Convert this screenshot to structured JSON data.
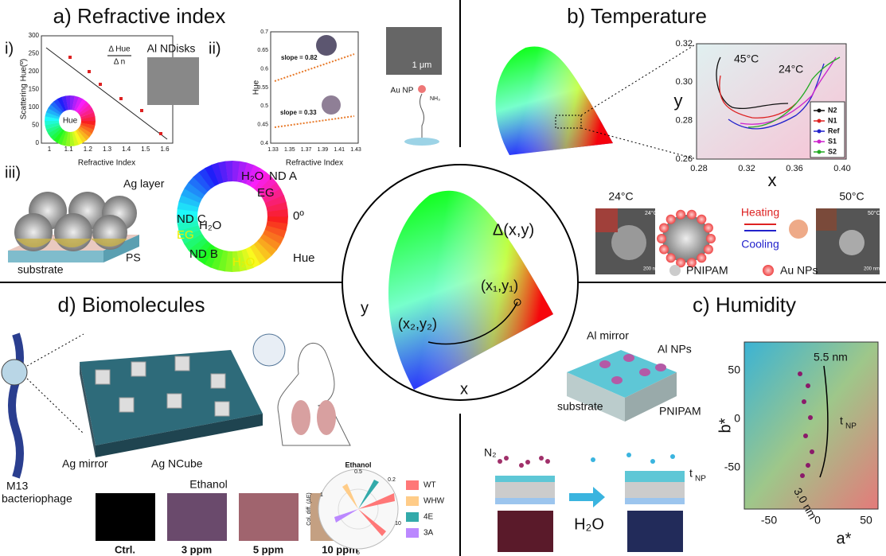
{
  "panels": {
    "a": {
      "title": "a) Refractive index",
      "sub_i": "i)",
      "sub_ii": "ii)",
      "sub_iii": "iii)",
      "plot_i": {
        "ylabel": "Scattering Hue(º)",
        "xlabel": "Refractive Index",
        "yticks": [
          "0",
          "50",
          "100",
          "150",
          "200",
          "250",
          "300"
        ],
        "xticks": [
          "1",
          "1.1",
          "1.2",
          "1.3",
          "1.4",
          "1.5",
          "1.6"
        ],
        "inset": "Al NDisks",
        "formula_num": "Δ Hue",
        "formula_den": "Δ n",
        "wheel": "Hue"
      },
      "plot_ii": {
        "ylabel": "Hue",
        "xlabel": "Refractive Index",
        "yticks": [
          "0.4",
          "0.45",
          "0.5",
          "0.55",
          "0.6",
          "0.65",
          "0.7"
        ],
        "xticks": [
          "1.33",
          "1.35",
          "1.37",
          "1.39",
          "1.41",
          "1.43"
        ],
        "slope_high": "slope = 0.82",
        "slope_low": "slope = 0.33",
        "scale": "1 μm",
        "particle": "Au NP",
        "ligand": "NH₃"
      },
      "iii": {
        "layer": "Ag layer",
        "sphere": "PS",
        "base": "substrate",
        "ring": [
          "H₂O",
          "ND A",
          "EG",
          "0º",
          "Hue",
          "ND C",
          "H₂O",
          "EG",
          "ND B",
          "H₂O"
        ]
      }
    },
    "b": {
      "title": "b) Temperature",
      "ylabel": "y",
      "xlabel": "x",
      "yticks": [
        "0.26",
        "0.28",
        "0.30",
        "0.32"
      ],
      "xticks": [
        "0.28",
        "0.32",
        "0.36",
        "0.40"
      ],
      "t_high": "45°C",
      "t_low": "24°C",
      "legend": [
        "N2",
        "N1",
        "Ref",
        "S1",
        "S2"
      ],
      "left_temp": "24°C",
      "right_temp": "50°C",
      "left_inset": "24°C",
      "right_inset": "50°C",
      "left_scale": "200 nm",
      "right_scale": "200 nm",
      "heating": "Heating",
      "cooling": "Cooling",
      "polymer": "PNIPAM",
      "particles": "Au NPs"
    },
    "center": {
      "delta": "Δ(x,y)",
      "p1": "(x₁,y₁)",
      "p2": "(x₂,y₂)",
      "ylabel": "y",
      "xlabel": "x"
    },
    "d": {
      "title": "d) Biomolecules",
      "phage": "M13",
      "phage2": "bacteriophage",
      "mirror": "Ag mirror",
      "cube": "Ag NCube",
      "swatch_title": "Ethanol",
      "swatches": [
        "Ctrl.",
        "3 ppm",
        "5 ppm",
        "10 ppm"
      ],
      "polar_title": "Ethanol",
      "polar_axis": "Col. diff. (ΔE)",
      "polar_ticks": [
        "0.5",
        "0.2",
        "10",
        "5",
        "1"
      ],
      "legend": [
        "WT",
        "WHW",
        "4E",
        "3A"
      ]
    },
    "c": {
      "title": "c) Humidity",
      "mirror": "Al mirror",
      "particles": "Al NPs",
      "base": "substrate",
      "polymer": "PNIPAM",
      "gas": "N₂",
      "water": "H₂O",
      "t_label": "t",
      "t_sub": "NP",
      "t_label2": "t",
      "t_sub2": "NP",
      "ylabel": "b*",
      "xlabel": "a*",
      "yticks": [
        "50",
        "0",
        "-50"
      ],
      "xticks": [
        "-50",
        "0",
        "50"
      ],
      "top": "5.5 nm",
      "bottom": "3.0 nm",
      "arrow_label": "t",
      "arrow_sub": "NP"
    }
  }
}
